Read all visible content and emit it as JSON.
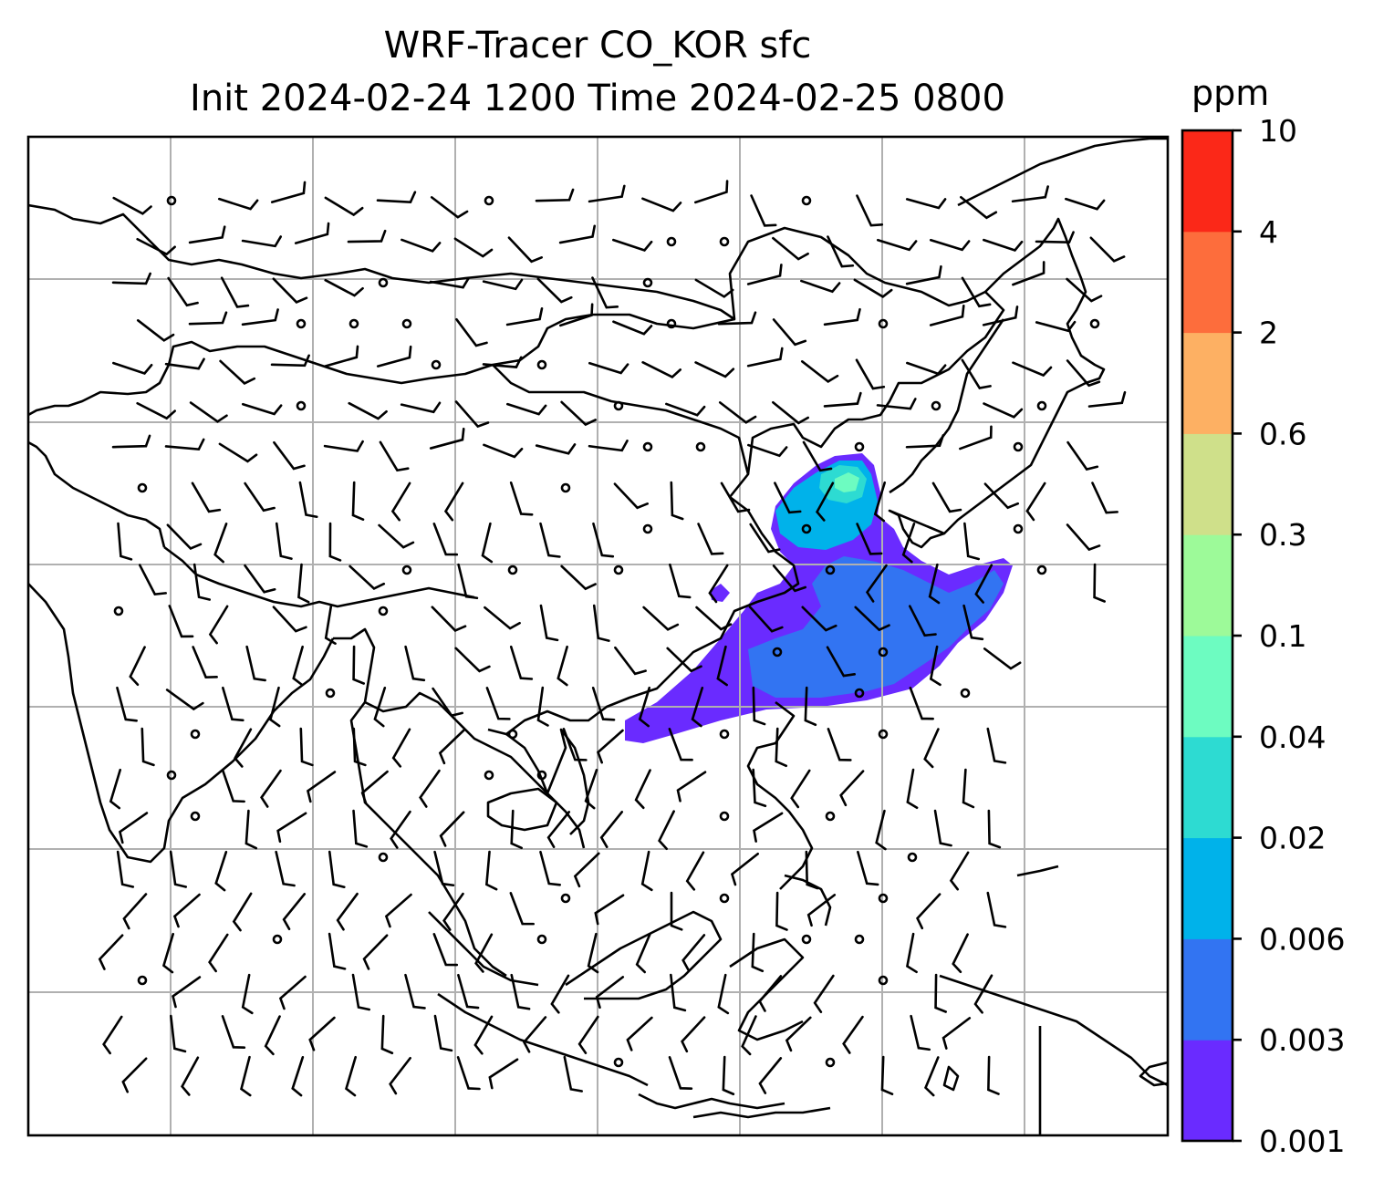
{
  "title_line1": "WRF-Tracer CO_KOR sfc",
  "title_line2": "Init 2024-02-24 1200 Time 2024-02-25 0800",
  "colorbar": {
    "unit": "ppm",
    "levels": [
      "0.001",
      "0.003",
      "0.006",
      "0.02",
      "0.04",
      "0.1",
      "0.3",
      "0.6",
      "2",
      "4",
      "10"
    ],
    "colors": [
      "#6a2bff",
      "#3274f2",
      "#00b2ea",
      "#2ddbd2",
      "#6dfcc1",
      "#9dfa99",
      "#cfe08a",
      "#fdb063",
      "#fd6d3c",
      "#fb2818"
    ]
  },
  "map": {
    "gridlines": true,
    "coastline_color": "#000000",
    "grid_color": "#b0b0b0",
    "plume_levels_present": [
      "0.001",
      "0.003",
      "0.006",
      "0.02",
      "0.04"
    ]
  }
}
